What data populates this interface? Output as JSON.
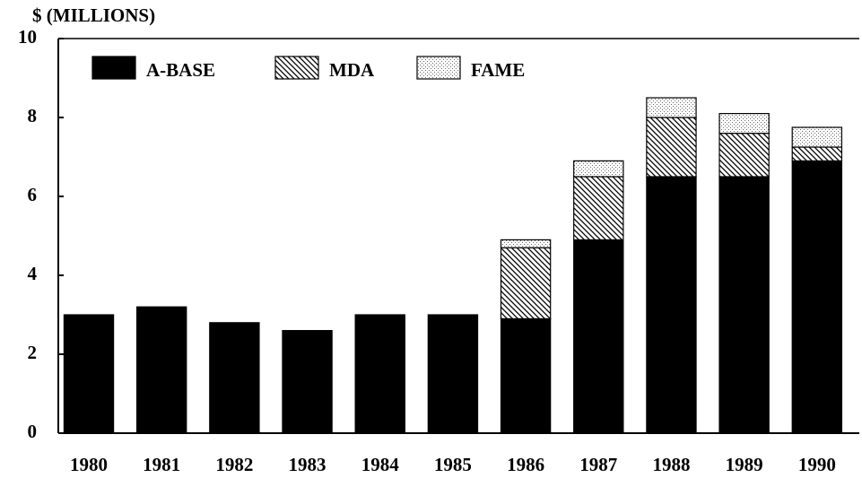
{
  "chart_data": {
    "type": "stacked_bar",
    "title": "$ (MILLIONS)",
    "categories": [
      "1980",
      "1981",
      "1982",
      "1983",
      "1984",
      "1985",
      "1986",
      "1987",
      "1988",
      "1989",
      "1990"
    ],
    "series": [
      {
        "name": "A-BASE",
        "color": "#000000",
        "pattern": "solid",
        "values": [
          3.0,
          3.2,
          2.8,
          2.6,
          3.0,
          3.0,
          2.9,
          4.9,
          6.5,
          6.5,
          6.9
        ]
      },
      {
        "name": "MDA",
        "color": "#000000",
        "pattern": "hatch",
        "values": [
          0,
          0,
          0,
          0,
          0,
          0,
          1.8,
          1.6,
          1.5,
          1.1,
          0.35
        ]
      },
      {
        "name": "FAME",
        "color": "#000000",
        "pattern": "dots",
        "values": [
          0,
          0,
          0,
          0,
          0,
          0,
          0.2,
          0.4,
          0.5,
          0.5,
          0.5
        ]
      }
    ],
    "ylim": [
      0,
      10
    ],
    "yticks": [
      0,
      2,
      4,
      6,
      8,
      10
    ],
    "legend": "upper left"
  }
}
